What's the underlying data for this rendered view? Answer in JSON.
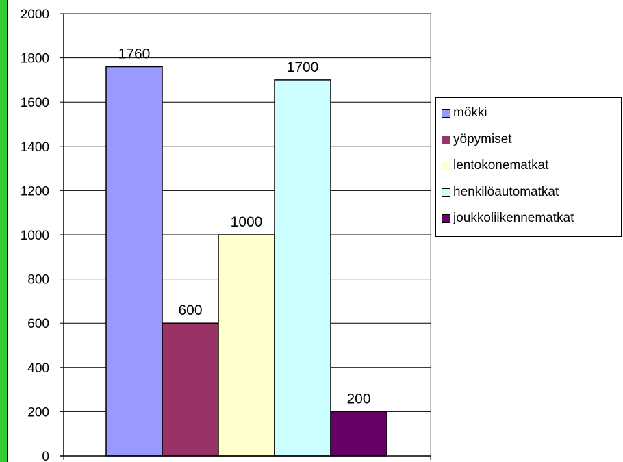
{
  "chart_data": {
    "type": "bar",
    "title": "",
    "xlabel": "",
    "ylabel": "",
    "ylim": [
      0,
      2000
    ],
    "yticks": [
      0,
      200,
      400,
      600,
      800,
      1000,
      1200,
      1400,
      1600,
      1800,
      2000
    ],
    "grid": true,
    "legend_position": "right",
    "series": [
      {
        "name": "mökki",
        "values": [
          1760
        ],
        "color": "#9999ff"
      },
      {
        "name": "yöpymiset",
        "values": [
          600
        ],
        "color": "#993366"
      },
      {
        "name": "lentokonematkat",
        "values": [
          1000
        ],
        "color": "#ffffcc"
      },
      {
        "name": "henkilöautomatkat",
        "values": [
          1700
        ],
        "color": "#ccffff"
      },
      {
        "name": "joukkoliikennematkat",
        "values": [
          200
        ],
        "color": "#660066"
      }
    ],
    "data_labels": [
      "1760",
      "600",
      "1000",
      "1700",
      "200"
    ]
  },
  "colors": {
    "frame_accent": "#33cc33"
  }
}
